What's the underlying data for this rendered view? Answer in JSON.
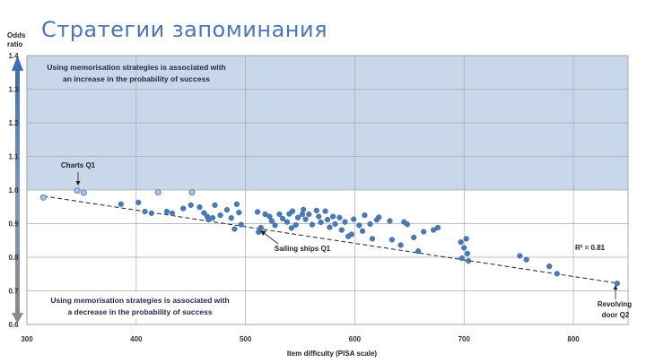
{
  "slide": {
    "title": "Стратегии запоминания"
  },
  "chart_data": {
    "type": "scatter",
    "title": "",
    "xlabel": "Item difficulty (PISA scale)",
    "ylabel_line1": "Odds",
    "ylabel_line2": "ratio",
    "xlim": [
      300,
      850
    ],
    "ylim": [
      0.6,
      1.4
    ],
    "x_ticks": [
      300,
      400,
      500,
      600,
      700,
      800
    ],
    "y_ticks": [
      0.6,
      0.7,
      0.8,
      0.9,
      1.0,
      1.1,
      1.2,
      1.3,
      1.4
    ],
    "grid": true,
    "upper_band_text_line1": "Using memorisation strategies is associated with",
    "upper_band_text_line2": "an increase in the probability of success",
    "lower_band_text_line1": "Using memorisation strategies is associated with",
    "lower_band_text_line2": "a decrease in the probability of success",
    "trendline": {
      "x": [
        315,
        840
      ],
      "y": [
        0.982,
        0.723
      ],
      "style": "dashed"
    },
    "r_squared_label": "R² = 0.81",
    "annotations": [
      {
        "label": "Charts Q1",
        "x": 347,
        "y": 1.0
      },
      {
        "label": "Sailing ships Q1",
        "x": 515,
        "y": 0.885
      },
      {
        "label_line1": "Revolving",
        "label_line2": "door Q2",
        "x": 840,
        "y": 0.722
      }
    ],
    "colors": {
      "upper_band": "#c8d7ea",
      "point": "#4a7ab5",
      "point_light": "#a9c3e3",
      "arrow": "#5b7fb3"
    },
    "points_light": [
      [
        315,
        0.978
      ],
      [
        346,
        0.998
      ],
      [
        352,
        0.992
      ],
      [
        420,
        0.993
      ],
      [
        451,
        0.993
      ]
    ],
    "points": [
      [
        386,
        0.958
      ],
      [
        402,
        0.963
      ],
      [
        408,
        0.936
      ],
      [
        414,
        0.931
      ],
      [
        428,
        0.936
      ],
      [
        433,
        0.931
      ],
      [
        443,
        0.945
      ],
      [
        450,
        0.955
      ],
      [
        458,
        0.949
      ],
      [
        462,
        0.932
      ],
      [
        465,
        0.921
      ],
      [
        466,
        0.912
      ],
      [
        470,
        0.917
      ],
      [
        472,
        0.955
      ],
      [
        477,
        0.925
      ],
      [
        483,
        0.941
      ],
      [
        487,
        0.917
      ],
      [
        490,
        0.884
      ],
      [
        492,
        0.958
      ],
      [
        494,
        0.933
      ],
      [
        496,
        0.897
      ],
      [
        511,
        0.935
      ],
      [
        512,
        0.875
      ],
      [
        514,
        0.888
      ],
      [
        518,
        0.928
      ],
      [
        522,
        0.921
      ],
      [
        524,
        0.908
      ],
      [
        527,
        0.895
      ],
      [
        531,
        0.928
      ],
      [
        534,
        0.915
      ],
      [
        538,
        0.905
      ],
      [
        540,
        0.929
      ],
      [
        542,
        0.887
      ],
      [
        543,
        0.937
      ],
      [
        546,
        0.896
      ],
      [
        548,
        0.918
      ],
      [
        552,
        0.928
      ],
      [
        553,
        0.942
      ],
      [
        555,
        0.913
      ],
      [
        558,
        0.928
      ],
      [
        561,
        0.897
      ],
      [
        565,
        0.939
      ],
      [
        567,
        0.921
      ],
      [
        569,
        0.904
      ],
      [
        573,
        0.937
      ],
      [
        575,
        0.912
      ],
      [
        577,
        0.889
      ],
      [
        580,
        0.921
      ],
      [
        582,
        0.899
      ],
      [
        586,
        0.918
      ],
      [
        588,
        0.881
      ],
      [
        591,
        0.905
      ],
      [
        594,
        0.862
      ],
      [
        597,
        0.868
      ],
      [
        599,
        0.913
      ],
      [
        604,
        0.895
      ],
      [
        607,
        0.878
      ],
      [
        609,
        0.925
      ],
      [
        614,
        0.899
      ],
      [
        616,
        0.855
      ],
      [
        620,
        0.911
      ],
      [
        622,
        0.919
      ],
      [
        632,
        0.908
      ],
      [
        634,
        0.852
      ],
      [
        642,
        0.836
      ],
      [
        645,
        0.905
      ],
      [
        648,
        0.898
      ],
      [
        654,
        0.859
      ],
      [
        658,
        0.818
      ],
      [
        663,
        0.876
      ],
      [
        672,
        0.881
      ],
      [
        676,
        0.888
      ],
      [
        697,
        0.845
      ],
      [
        698,
        0.797
      ],
      [
        700,
        0.828
      ],
      [
        702,
        0.855
      ],
      [
        703,
        0.811
      ],
      [
        704,
        0.789
      ],
      [
        751,
        0.804
      ],
      [
        757,
        0.793
      ],
      [
        778,
        0.773
      ],
      [
        785,
        0.751
      ]
    ]
  }
}
